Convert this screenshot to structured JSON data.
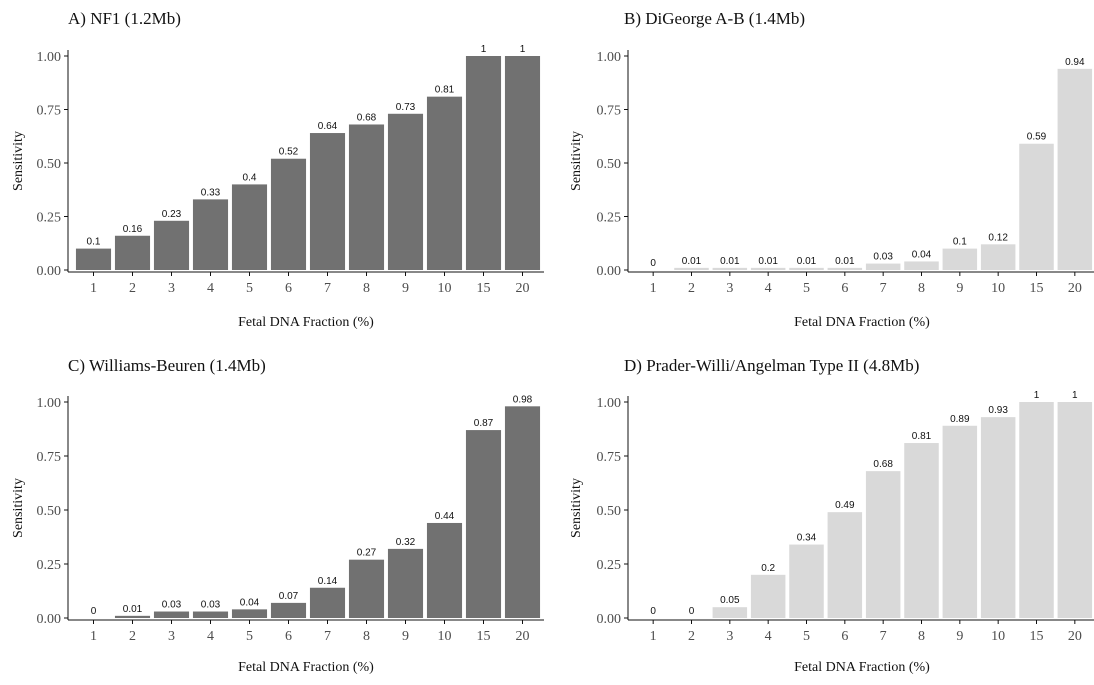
{
  "colors": {
    "dark_bar": "#717171",
    "light_bar": "#d9d9d9",
    "axis": "#111111"
  },
  "chart_data": [
    {
      "type": "bar",
      "title": "A) NF1 (1.2Mb)",
      "xlabel": "Fetal DNA Fraction (%)",
      "ylabel": "Sensitivity",
      "categories": [
        "1",
        "2",
        "3",
        "4",
        "5",
        "6",
        "7",
        "8",
        "9",
        "10",
        "15",
        "20"
      ],
      "values": [
        0.1,
        0.16,
        0.23,
        0.33,
        0.4,
        0.52,
        0.64,
        0.68,
        0.73,
        0.81,
        1,
        1
      ],
      "labels": [
        "0.1",
        "0.16",
        "0.23",
        "0.33",
        "0.4",
        "0.52",
        "0.64",
        "0.68",
        "0.73",
        "0.81",
        "1",
        "1"
      ],
      "yticks": [
        "0.00",
        "0.25",
        "0.50",
        "0.75",
        "1.00"
      ],
      "ylim": [
        0,
        1
      ],
      "bar_color": "#717171",
      "grid": false
    },
    {
      "type": "bar",
      "title": "B) DiGeorge A-B (1.4Mb)",
      "xlabel": "Fetal DNA Fraction (%)",
      "ylabel": "Sensitivity",
      "categories": [
        "1",
        "2",
        "3",
        "4",
        "5",
        "6",
        "7",
        "8",
        "9",
        "10",
        "15",
        "20"
      ],
      "values": [
        0,
        0.01,
        0.01,
        0.01,
        0.01,
        0.01,
        0.03,
        0.04,
        0.1,
        0.12,
        0.59,
        0.94
      ],
      "labels": [
        "0",
        "0.01",
        "0.01",
        "0.01",
        "0.01",
        "0.01",
        "0.03",
        "0.04",
        "0.1",
        "0.12",
        "0.59",
        "0.94"
      ],
      "yticks": [
        "0.00",
        "0.25",
        "0.50",
        "0.75",
        "1.00"
      ],
      "ylim": [
        0,
        1
      ],
      "bar_color": "#d9d9d9",
      "grid": false
    },
    {
      "type": "bar",
      "title": "C) Williams-Beuren (1.4Mb)",
      "xlabel": "Fetal DNA Fraction (%)",
      "ylabel": "Sensitivity",
      "categories": [
        "1",
        "2",
        "3",
        "4",
        "5",
        "6",
        "7",
        "8",
        "9",
        "10",
        "15",
        "20"
      ],
      "values": [
        0,
        0.01,
        0.03,
        0.03,
        0.04,
        0.07,
        0.14,
        0.27,
        0.32,
        0.44,
        0.87,
        0.98
      ],
      "labels": [
        "0",
        "0.01",
        "0.03",
        "0.03",
        "0.04",
        "0.07",
        "0.14",
        "0.27",
        "0.32",
        "0.44",
        "0.87",
        "0.98"
      ],
      "yticks": [
        "0.00",
        "0.25",
        "0.50",
        "0.75",
        "1.00"
      ],
      "ylim": [
        0,
        1
      ],
      "bar_color": "#717171",
      "grid": false
    },
    {
      "type": "bar",
      "title": "D) Prader-Willi/Angelman Type II (4.8Mb)",
      "xlabel": "Fetal DNA Fraction (%)",
      "ylabel": "Sensitivity",
      "categories": [
        "1",
        "2",
        "3",
        "4",
        "5",
        "6",
        "7",
        "8",
        "9",
        "10",
        "15",
        "20"
      ],
      "values": [
        0,
        0,
        0.05,
        0.2,
        0.34,
        0.49,
        0.68,
        0.81,
        0.89,
        0.93,
        1,
        1
      ],
      "labels": [
        "0",
        "0",
        "0.05",
        "0.2",
        "0.34",
        "0.49",
        "0.68",
        "0.81",
        "0.89",
        "0.93",
        "1",
        "1"
      ],
      "yticks": [
        "0.00",
        "0.25",
        "0.50",
        "0.75",
        "1.00"
      ],
      "ylim": [
        0,
        1
      ],
      "bar_color": "#d9d9d9",
      "grid": false
    }
  ]
}
